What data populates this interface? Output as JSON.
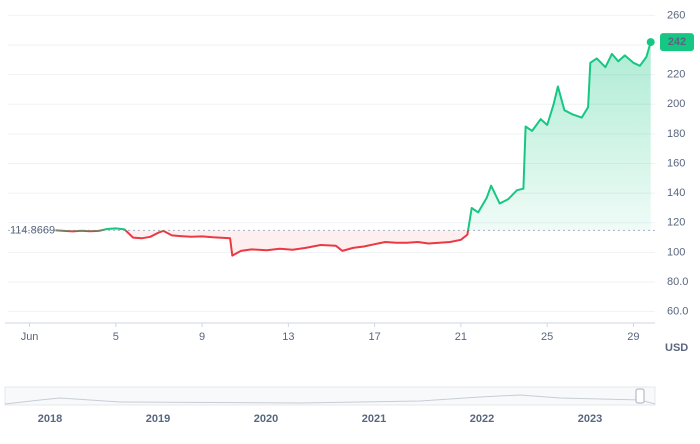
{
  "chart_data": {
    "type": "line",
    "x": [
      2.2,
      2.6,
      3,
      3.4,
      3.8,
      4.2,
      4.6,
      5,
      5.4,
      5.8,
      6.2,
      6.6,
      7,
      7.2,
      7.6,
      8,
      8.5,
      9,
      9.5,
      10,
      10.3,
      10.4,
      10.8,
      11.3,
      12,
      12.6,
      13.2,
      13.8,
      14.5,
      15.2,
      15.5,
      16,
      16.5,
      17,
      17.5,
      18,
      18.5,
      19,
      19.5,
      20,
      20.5,
      21,
      21.3,
      21.5,
      21.8,
      22.2,
      22.4,
      22.8,
      23.2,
      23.6,
      23.9,
      24,
      24.3,
      24.7,
      25,
      25.3,
      25.5,
      25.8,
      26.2,
      26.6,
      26.9,
      27,
      27.3,
      27.7,
      28,
      28.3,
      28.6,
      29,
      29.3,
      29.6,
      29.8
    ],
    "values": [
      114.9,
      114.5,
      114.2,
      114.6,
      114.3,
      114.5,
      115.8,
      116.2,
      115.5,
      110,
      109.5,
      110.5,
      113.5,
      114.5,
      111.5,
      111,
      110.5,
      110.8,
      110.2,
      109.8,
      109.5,
      97.8,
      101,
      102,
      101.5,
      102.5,
      101.8,
      103,
      105,
      104.5,
      101,
      103,
      104,
      105.5,
      107,
      106.5,
      106.5,
      107,
      106,
      106.5,
      107,
      108.5,
      112,
      130,
      127,
      137,
      145,
      133,
      136,
      142,
      143,
      185,
      182,
      190,
      186,
      200,
      212,
      196,
      193,
      191,
      198,
      228,
      231,
      225,
      234,
      229,
      233,
      228,
      226,
      232,
      242
    ],
    "baseline": 114.8669,
    "up_color": "#16c784",
    "down_color": "#ea3943",
    "xlim": [
      0,
      30
    ],
    "xticks": [
      {
        "value": 1,
        "label": "Jun"
      },
      5,
      9,
      13,
      17,
      21,
      25,
      29
    ],
    "ylim": [
      53,
      265
    ],
    "yticks": [
      {
        "value": 60,
        "label": "60.0"
      },
      {
        "value": 80,
        "label": "80.0"
      },
      100,
      120,
      140,
      160,
      180,
      200,
      220,
      240,
      260
    ],
    "y_label": "USD",
    "grid": true
  },
  "navigator": {
    "years": [
      "2018",
      "2019",
      "2020",
      "2021",
      "2022",
      "2023"
    ]
  }
}
